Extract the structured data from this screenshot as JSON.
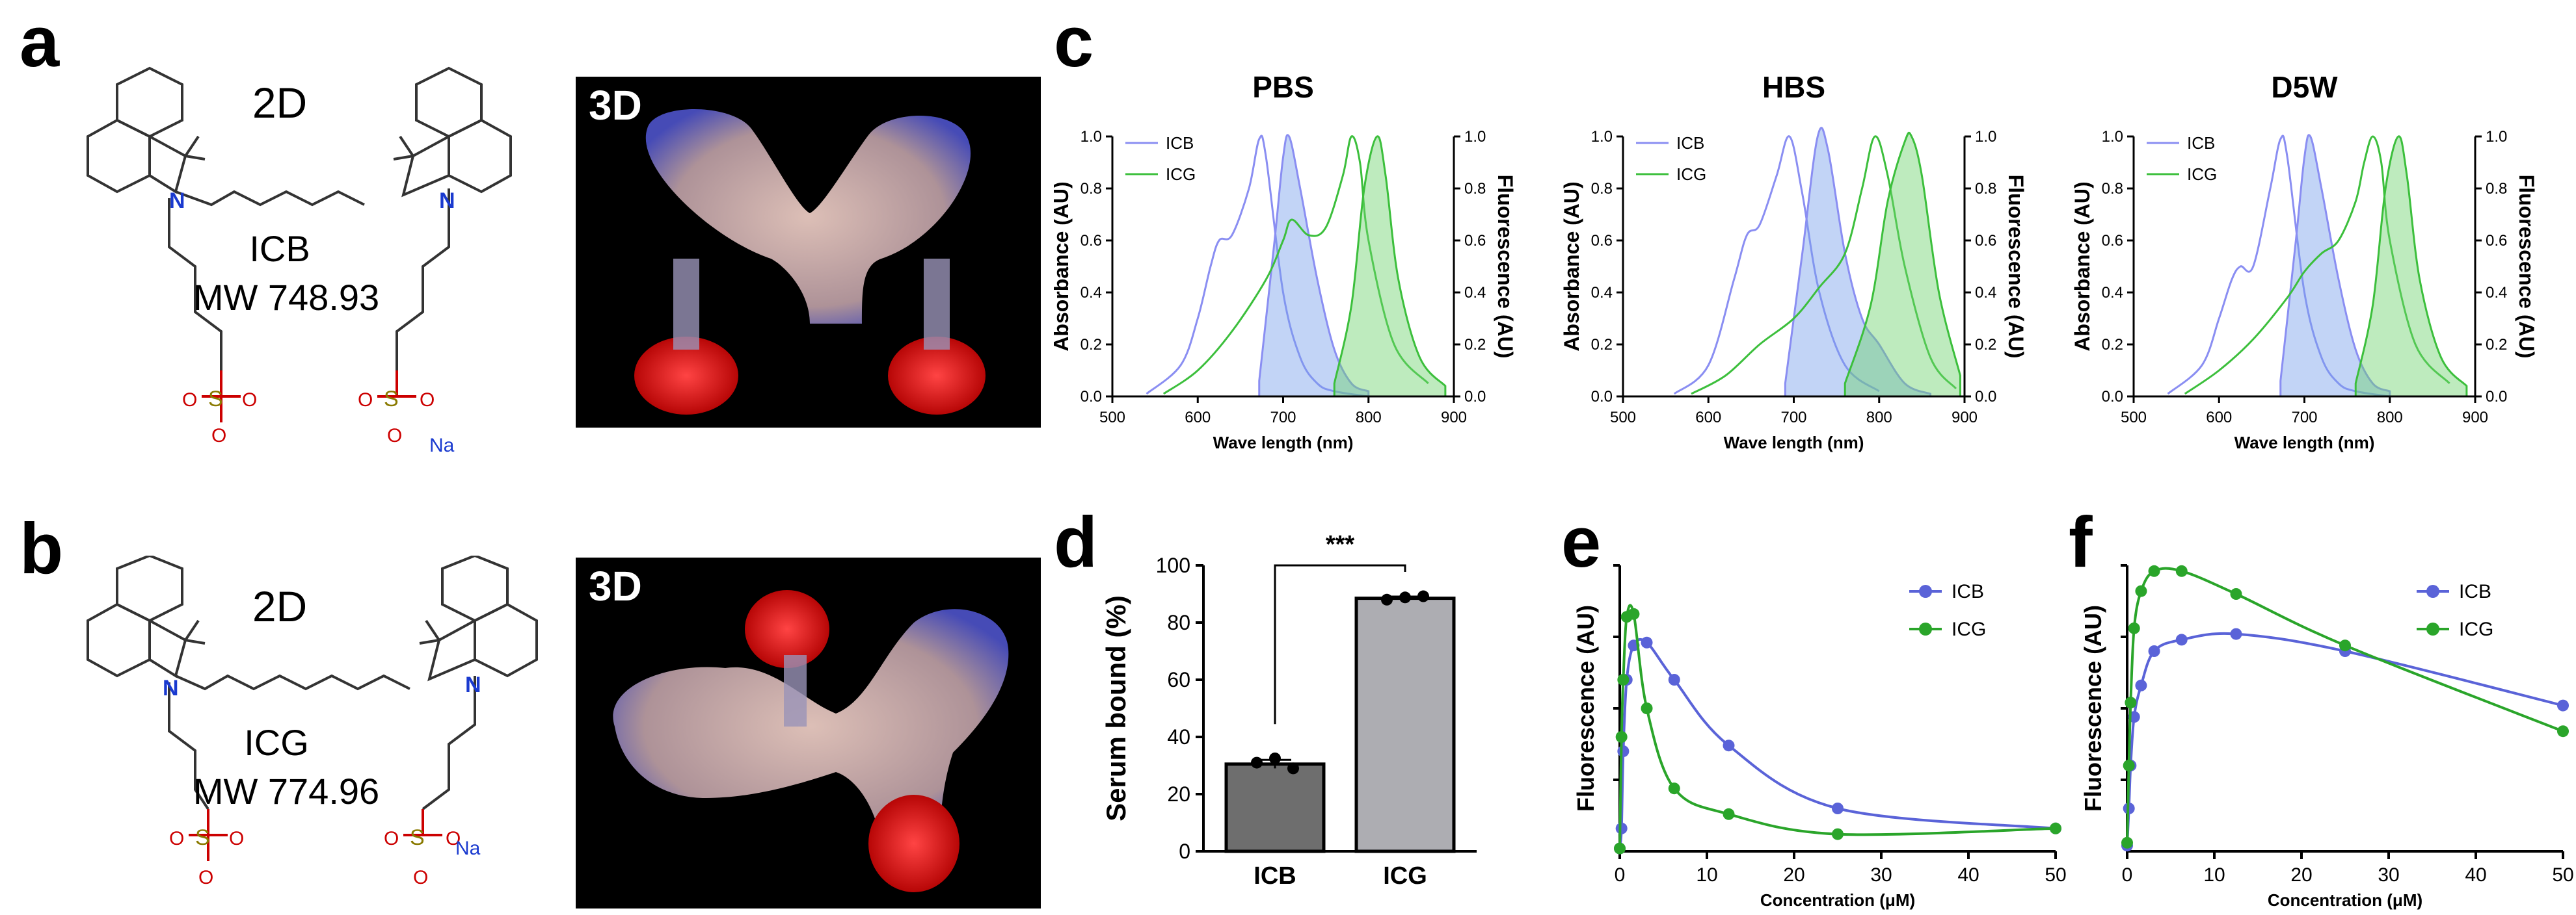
{
  "panels": {
    "a": "a",
    "b": "b",
    "c": "c",
    "d": "d",
    "e": "e",
    "f": "f"
  },
  "a": {
    "view2d": "2D",
    "view3d": "3D",
    "name": "ICB",
    "mw": "MW 748.93",
    "counter_ion": "Na"
  },
  "b": {
    "view2d": "2D",
    "view3d": "3D",
    "name": "ICG",
    "mw": "MW 774.96",
    "counter_ion": "Na"
  },
  "spectra_common": {
    "xlabel": "Wave length (nm)",
    "ylabel_left": "Absorbance (AU)",
    "ylabel_right": "Fluorescence (AU)",
    "xticks": [
      "500",
      "600",
      "700",
      "800",
      "900"
    ],
    "yticks": [
      "0.0",
      "0.2",
      "0.4",
      "0.6",
      "0.8",
      "1.0"
    ],
    "legend": [
      "ICB",
      "ICG"
    ]
  },
  "chart_data": [
    {
      "type": "line",
      "panel": "c",
      "title": "PBS",
      "xlabel": "Wave length (nm)",
      "ylabel": "Absorbance (AU)",
      "y2label": "Fluorescence (AU)",
      "xlim": [
        500,
        900
      ],
      "ylim": [
        0,
        1
      ],
      "series": [
        {
          "name": "ICB absorbance",
          "x": [
            540,
            580,
            600,
            615,
            625,
            640,
            660,
            672,
            680,
            700,
            720,
            740,
            760,
            800
          ],
          "values": [
            0.01,
            0.12,
            0.3,
            0.5,
            0.6,
            0.62,
            0.8,
            0.99,
            0.92,
            0.4,
            0.15,
            0.05,
            0.02,
            0.0
          ]
        },
        {
          "name": "ICB fluorescence",
          "x": [
            672,
            690,
            700,
            707,
            720,
            740,
            760,
            780,
            800
          ],
          "values": [
            0.06,
            0.6,
            0.92,
            1.0,
            0.8,
            0.45,
            0.18,
            0.05,
            0.02
          ]
        },
        {
          "name": "ICG absorbance",
          "x": [
            560,
            600,
            640,
            680,
            700,
            710,
            730,
            750,
            770,
            780,
            790,
            800,
            830,
            870
          ],
          "values": [
            0.01,
            0.1,
            0.25,
            0.45,
            0.6,
            0.68,
            0.62,
            0.65,
            0.85,
            1.0,
            0.9,
            0.6,
            0.2,
            0.05
          ]
        },
        {
          "name": "ICG fluorescence",
          "x": [
            760,
            780,
            795,
            810,
            820,
            835,
            860,
            890
          ],
          "values": [
            0.05,
            0.35,
            0.8,
            1.0,
            0.85,
            0.45,
            0.15,
            0.04
          ]
        }
      ]
    },
    {
      "type": "line",
      "panel": "c",
      "title": "HBS",
      "xlabel": "Wave length (nm)",
      "ylabel": "Absorbance (AU)",
      "y2label": "Fluorescence (AU)",
      "xlim": [
        500,
        900
      ],
      "ylim": [
        0,
        1
      ],
      "series": [
        {
          "name": "ICB absorbance",
          "x": [
            560,
            600,
            630,
            645,
            660,
            680,
            695,
            710,
            730,
            760,
            800
          ],
          "values": [
            0.01,
            0.12,
            0.45,
            0.62,
            0.66,
            0.85,
            1.0,
            0.78,
            0.4,
            0.12,
            0.02
          ]
        },
        {
          "name": "ICB fluorescence",
          "x": [
            690,
            710,
            728,
            740,
            760,
            780,
            800,
            830,
            860
          ],
          "values": [
            0.05,
            0.55,
            1.0,
            0.95,
            0.55,
            0.3,
            0.2,
            0.05,
            0.01
          ]
        },
        {
          "name": "ICG absorbance",
          "x": [
            580,
            620,
            660,
            700,
            730,
            760,
            780,
            795,
            810,
            830,
            860,
            890
          ],
          "values": [
            0.01,
            0.08,
            0.2,
            0.3,
            0.42,
            0.55,
            0.8,
            1.0,
            0.85,
            0.5,
            0.15,
            0.03
          ]
        },
        {
          "name": "ICG fluorescence",
          "x": [
            760,
            790,
            810,
            830,
            838,
            850,
            870,
            895
          ],
          "values": [
            0.05,
            0.35,
            0.75,
            0.98,
            1.0,
            0.85,
            0.4,
            0.08
          ]
        }
      ]
    },
    {
      "type": "line",
      "panel": "c",
      "title": "D5W",
      "xlabel": "Wave length (nm)",
      "ylabel": "Absorbance (AU)",
      "y2label": "Fluorescence (AU)",
      "xlim": [
        500,
        900
      ],
      "ylim": [
        0,
        1
      ],
      "series": [
        {
          "name": "ICB absorbance",
          "x": [
            540,
            580,
            600,
            615,
            625,
            640,
            660,
            672,
            680,
            700,
            720,
            740,
            760,
            800
          ],
          "values": [
            0.01,
            0.12,
            0.3,
            0.45,
            0.5,
            0.5,
            0.8,
            0.99,
            0.92,
            0.4,
            0.15,
            0.05,
            0.02,
            0.0
          ]
        },
        {
          "name": "ICB fluorescence",
          "x": [
            672,
            690,
            700,
            707,
            720,
            740,
            760,
            780,
            800
          ],
          "values": [
            0.06,
            0.6,
            0.92,
            1.0,
            0.8,
            0.45,
            0.18,
            0.05,
            0.02
          ]
        },
        {
          "name": "ICG absorbance",
          "x": [
            560,
            600,
            640,
            680,
            700,
            720,
            740,
            760,
            770,
            780,
            790,
            800,
            830,
            870
          ],
          "values": [
            0.01,
            0.1,
            0.22,
            0.38,
            0.48,
            0.55,
            0.6,
            0.75,
            0.9,
            1.0,
            0.9,
            0.6,
            0.2,
            0.05
          ]
        },
        {
          "name": "ICG fluorescence",
          "x": [
            760,
            780,
            795,
            810,
            820,
            835,
            860,
            890
          ],
          "values": [
            0.05,
            0.35,
            0.8,
            1.0,
            0.85,
            0.45,
            0.15,
            0.04
          ]
        }
      ]
    },
    {
      "type": "bar",
      "panel": "d",
      "categories": [
        "ICB",
        "ICG"
      ],
      "values": [
        30.5,
        88.5
      ],
      "points": [
        [
          31,
          32.5,
          29
        ],
        [
          88,
          88.8,
          89.2
        ]
      ],
      "errors": [
        1.5,
        0.6
      ],
      "ylabel": "Serum bound (%)",
      "ylim": [
        0,
        100
      ],
      "yticks": [
        "0",
        "20",
        "40",
        "60",
        "80",
        "100"
      ],
      "significance": "***",
      "colors": [
        "#6e6e6e",
        "#adadb2"
      ]
    },
    {
      "type": "scatter",
      "panel": "e",
      "xlabel": "Concentration (μM)",
      "ylabel": "Fluorescence (AU)",
      "xlim": [
        0,
        50
      ],
      "xticks": [
        "0",
        "10",
        "20",
        "30",
        "40",
        "50"
      ],
      "ylim": [
        0,
        1
      ],
      "series": [
        {
          "name": "ICB",
          "color": "#5a63d8",
          "x": [
            0,
            0.2,
            0.4,
            0.8,
            1.6,
            3.1,
            6.25,
            12.5,
            25,
            50
          ],
          "values": [
            0.01,
            0.08,
            0.35,
            0.6,
            0.72,
            0.73,
            0.6,
            0.37,
            0.15,
            0.08
          ]
        },
        {
          "name": "ICG",
          "color": "#2aa52a",
          "x": [
            0,
            0.2,
            0.4,
            0.8,
            1.6,
            3.1,
            6.25,
            12.5,
            25,
            50
          ],
          "values": [
            0.01,
            0.4,
            0.6,
            0.82,
            0.83,
            0.5,
            0.22,
            0.13,
            0.06,
            0.08
          ]
        }
      ]
    },
    {
      "type": "scatter",
      "panel": "f",
      "xlabel": "Concentration (μM)",
      "ylabel": "Fluorescence (AU)",
      "xlim": [
        0,
        50
      ],
      "xticks": [
        "0",
        "10",
        "20",
        "30",
        "40",
        "50"
      ],
      "ylim": [
        0,
        1
      ],
      "series": [
        {
          "name": "ICB",
          "color": "#5a63d8",
          "x": [
            0,
            0.2,
            0.4,
            0.8,
            1.6,
            3.1,
            6.25,
            12.5,
            25,
            50
          ],
          "values": [
            0.02,
            0.15,
            0.3,
            0.47,
            0.58,
            0.7,
            0.74,
            0.76,
            0.7,
            0.51
          ]
        },
        {
          "name": "ICG",
          "color": "#2aa52a",
          "x": [
            0,
            0.2,
            0.4,
            0.8,
            1.6,
            3.1,
            6.25,
            12.5,
            25,
            50
          ],
          "values": [
            0.03,
            0.3,
            0.52,
            0.78,
            0.91,
            0.98,
            0.98,
            0.9,
            0.72,
            0.42
          ]
        }
      ]
    }
  ]
}
